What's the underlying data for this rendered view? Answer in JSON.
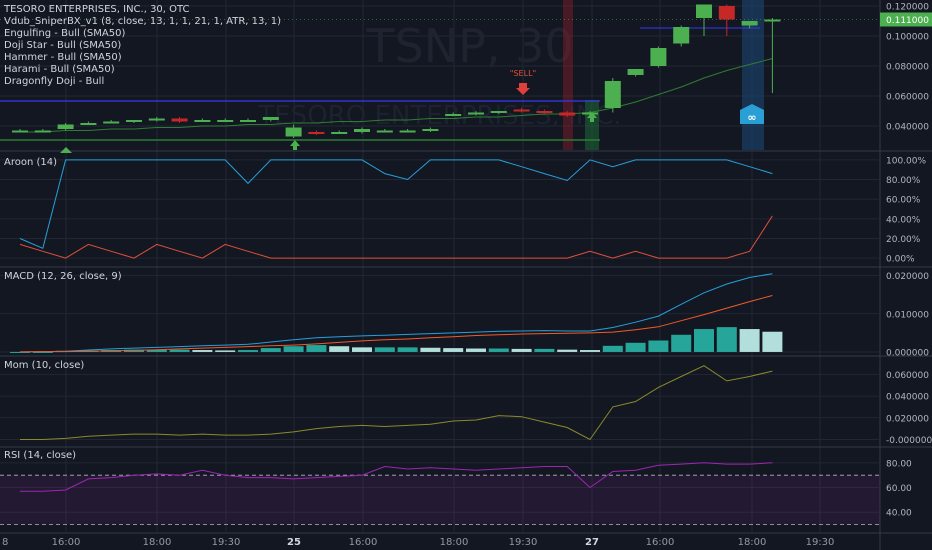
{
  "header": {
    "title": "TESORO ENTERPRISES, INC., 30, OTC",
    "studies": [
      "Vdub_SniperBX_v1 (8, close, 13, 1, 1, 21, 1, ATR, 13, 1)",
      "Engulfing - Bull (SMA50)",
      "Doji Star - Bull (SMA50)",
      "Hammer - Bull (SMA50)",
      "Harami - Bull (SMA50)",
      "Dragonfly Doji - Bull"
    ]
  },
  "watermark": {
    "symbol": "TSNP, 30",
    "name": "TESORO ENTERPRISES, INC."
  },
  "colors": {
    "bg": "#131722",
    "up": "#4caf50",
    "down": "#c62828",
    "grid": "#232734",
    "aroon_up": "#26a0da",
    "aroon_down": "#e0503a",
    "macd": "#26a0da",
    "signal": "#f05a28",
    "mom": "#8a8a2a",
    "rsi": "#9c27b0"
  },
  "annotations": {
    "sell_label": "\"SELL\"",
    "badge_icon": "loop-icon"
  },
  "xaxis": {
    "labels": [
      "16:00",
      "18:00",
      "19:30",
      "25",
      "16:00",
      "18:00",
      "19:30",
      "27",
      "16:00",
      "18:00",
      "19:30"
    ],
    "first_partial": "8"
  },
  "chart_data": [
    {
      "type": "candlestick",
      "title": "TESORO ENTERPRISES, INC., 30, OTC",
      "ylim": [
        0.024,
        0.124
      ],
      "y_ticks": [
        "0.120000",
        "0.100000",
        "0.080000",
        "0.060000",
        "0.040000"
      ],
      "last_price": "0.111000",
      "candles": [
        {
          "o": 0.037,
          "h": 0.038,
          "l": 0.036,
          "c": 0.037
        },
        {
          "o": 0.037,
          "h": 0.038,
          "l": 0.036,
          "c": 0.037
        },
        {
          "o": 0.038,
          "h": 0.042,
          "l": 0.037,
          "c": 0.041
        },
        {
          "o": 0.042,
          "h": 0.043,
          "l": 0.041,
          "c": 0.042
        },
        {
          "o": 0.043,
          "h": 0.044,
          "l": 0.042,
          "c": 0.043
        },
        {
          "o": 0.043,
          "h": 0.044,
          "l": 0.042,
          "c": 0.044
        },
        {
          "o": 0.044,
          "h": 0.046,
          "l": 0.043,
          "c": 0.045
        },
        {
          "o": 0.045,
          "h": 0.046,
          "l": 0.042,
          "c": 0.043
        },
        {
          "o": 0.044,
          "h": 0.045,
          "l": 0.043,
          "c": 0.044
        },
        {
          "o": 0.044,
          "h": 0.045,
          "l": 0.043,
          "c": 0.044
        },
        {
          "o": 0.044,
          "h": 0.045,
          "l": 0.043,
          "c": 0.044
        },
        {
          "o": 0.044,
          "h": 0.046,
          "l": 0.043,
          "c": 0.046
        },
        {
          "o": 0.033,
          "h": 0.041,
          "l": 0.032,
          "c": 0.039
        },
        {
          "o": 0.036,
          "h": 0.037,
          "l": 0.034,
          "c": 0.035
        },
        {
          "o": 0.036,
          "h": 0.037,
          "l": 0.035,
          "c": 0.036
        },
        {
          "o": 0.036,
          "h": 0.039,
          "l": 0.035,
          "c": 0.038
        },
        {
          "o": 0.037,
          "h": 0.038,
          "l": 0.036,
          "c": 0.037
        },
        {
          "o": 0.037,
          "h": 0.038,
          "l": 0.036,
          "c": 0.037
        },
        {
          "o": 0.037,
          "h": 0.039,
          "l": 0.036,
          "c": 0.038
        },
        {
          "o": 0.048,
          "h": 0.049,
          "l": 0.047,
          "c": 0.048
        },
        {
          "o": 0.048,
          "h": 0.05,
          "l": 0.047,
          "c": 0.049
        },
        {
          "o": 0.049,
          "h": 0.05,
          "l": 0.048,
          "c": 0.05
        },
        {
          "o": 0.051,
          "h": 0.052,
          "l": 0.049,
          "c": 0.05
        },
        {
          "o": 0.05,
          "h": 0.051,
          "l": 0.048,
          "c": 0.049
        },
        {
          "o": 0.049,
          "h": 0.05,
          "l": 0.046,
          "c": 0.047
        },
        {
          "o": 0.048,
          "h": 0.05,
          "l": 0.047,
          "c": 0.049
        },
        {
          "o": 0.052,
          "h": 0.072,
          "l": 0.049,
          "c": 0.07
        },
        {
          "o": 0.074,
          "h": 0.078,
          "l": 0.073,
          "c": 0.078
        },
        {
          "o": 0.08,
          "h": 0.093,
          "l": 0.079,
          "c": 0.092
        },
        {
          "o": 0.095,
          "h": 0.107,
          "l": 0.093,
          "c": 0.106
        },
        {
          "o": 0.112,
          "h": 0.121,
          "l": 0.1,
          "c": 0.121
        },
        {
          "o": 0.12,
          "h": 0.121,
          "l": 0.1,
          "c": 0.111
        },
        {
          "o": 0.107,
          "h": 0.11,
          "l": 0.105,
          "c": 0.11
        },
        {
          "o": 0.111,
          "h": 0.112,
          "l": 0.062,
          "c": 0.111
        }
      ],
      "sma": [
        0.036,
        0.036,
        0.037,
        0.037,
        0.038,
        0.038,
        0.039,
        0.039,
        0.04,
        0.04,
        0.041,
        0.041,
        0.042,
        0.042,
        0.043,
        0.043,
        0.044,
        0.044,
        0.045,
        0.045,
        0.046,
        0.046,
        0.047,
        0.048,
        0.048,
        0.049,
        0.052,
        0.056,
        0.061,
        0.066,
        0.072,
        0.077,
        0.081,
        0.085
      ]
    },
    {
      "type": "line",
      "title": "Aroon (14)",
      "ylim": [
        -0.08,
        1.08
      ],
      "y_ticks": [
        "100.00%",
        "80.00%",
        "60.00%",
        "40.00%",
        "20.00%",
        "0.00%"
      ],
      "series": [
        {
          "name": "up",
          "values": [
            0.2,
            0.1,
            1.0,
            1.0,
            1.0,
            1.0,
            1.0,
            1.0,
            1.0,
            1.0,
            0.76,
            1.0,
            1.0,
            1.0,
            1.0,
            1.0,
            0.86,
            0.8,
            1.0,
            1.0,
            1.0,
            1.0,
            0.93,
            0.86,
            0.79,
            1.0,
            0.93,
            1.0,
            1.0,
            1.0,
            1.0,
            1.0,
            0.93,
            0.86
          ]
        },
        {
          "name": "down",
          "values": [
            0.14,
            0.07,
            0.0,
            0.14,
            0.07,
            0.0,
            0.14,
            0.07,
            0.0,
            0.14,
            0.07,
            0.0,
            0.0,
            0.0,
            0.0,
            0.0,
            0.0,
            0.0,
            0.0,
            0.0,
            0.0,
            0.0,
            0.0,
            0.0,
            0.0,
            0.07,
            0.0,
            0.07,
            0.0,
            0.0,
            0.0,
            0.0,
            0.07,
            0.43
          ]
        }
      ]
    },
    {
      "type": "bar+line",
      "title": "MACD (12, 26, close, 9)",
      "ylim": [
        -0.0008,
        0.022
      ],
      "y_ticks": [
        "0.020000",
        "0.010000",
        "0.000000"
      ],
      "histogram": [
        0.0,
        0.0,
        0.0003,
        0.0004,
        0.0005,
        0.0006,
        0.0006,
        0.0006,
        0.0005,
        0.0004,
        0.0005,
        0.001,
        0.0015,
        0.0018,
        0.0015,
        0.0012,
        0.0012,
        0.0012,
        0.0011,
        0.001,
        0.0009,
        0.0009,
        0.0008,
        0.0008,
        0.0006,
        0.0005,
        0.0016,
        0.0024,
        0.003,
        0.0045,
        0.006,
        0.0065,
        0.006,
        0.0053
      ],
      "macd": [
        0.0,
        0.0001,
        0.0002,
        0.0005,
        0.0008,
        0.001,
        0.0012,
        0.0014,
        0.0016,
        0.0018,
        0.002,
        0.0026,
        0.0032,
        0.0037,
        0.004,
        0.0042,
        0.0044,
        0.0046,
        0.0048,
        0.005,
        0.0052,
        0.0054,
        0.0055,
        0.0056,
        0.0055,
        0.0055,
        0.0064,
        0.0078,
        0.0094,
        0.0125,
        0.0155,
        0.0178,
        0.0195,
        0.0205
      ],
      "signal": [
        0.0,
        0.0001,
        0.0001,
        0.0002,
        0.0003,
        0.0004,
        0.0006,
        0.0008,
        0.001,
        0.0012,
        0.0014,
        0.0016,
        0.0018,
        0.0021,
        0.0025,
        0.0029,
        0.0032,
        0.0034,
        0.0037,
        0.004,
        0.0043,
        0.0045,
        0.0047,
        0.0048,
        0.0049,
        0.005,
        0.0052,
        0.0058,
        0.0066,
        0.0082,
        0.0098,
        0.0115,
        0.0132,
        0.0148
      ]
    },
    {
      "type": "line",
      "title": "Mom (10, close)",
      "ylim": [
        -0.006,
        0.076
      ],
      "y_ticks": [
        "0.060000",
        "0.040000",
        "0.020000",
        "-0.000000"
      ],
      "values": [
        0.0,
        0.0,
        0.001,
        0.003,
        0.004,
        0.005,
        0.005,
        0.004,
        0.005,
        0.004,
        0.004,
        0.005,
        0.007,
        0.01,
        0.012,
        0.013,
        0.012,
        0.013,
        0.014,
        0.017,
        0.018,
        0.022,
        0.021,
        0.016,
        0.011,
        0.0,
        0.03,
        0.035,
        0.048,
        0.058,
        0.068,
        0.054,
        0.058,
        0.063
      ]
    },
    {
      "type": "line",
      "title": "RSI (14, close)",
      "ylim": [
        24,
        92
      ],
      "y_ticks": [
        "80.00",
        "60.00",
        "40.00"
      ],
      "band": [
        30,
        70
      ],
      "values": [
        57,
        57,
        58,
        67,
        68,
        70,
        71,
        70,
        74,
        70,
        68,
        68,
        67,
        68,
        69,
        70,
        77,
        75,
        76,
        75,
        74,
        75,
        76,
        77,
        77,
        60,
        73,
        74,
        78,
        79,
        80,
        79,
        79,
        80
      ]
    }
  ]
}
